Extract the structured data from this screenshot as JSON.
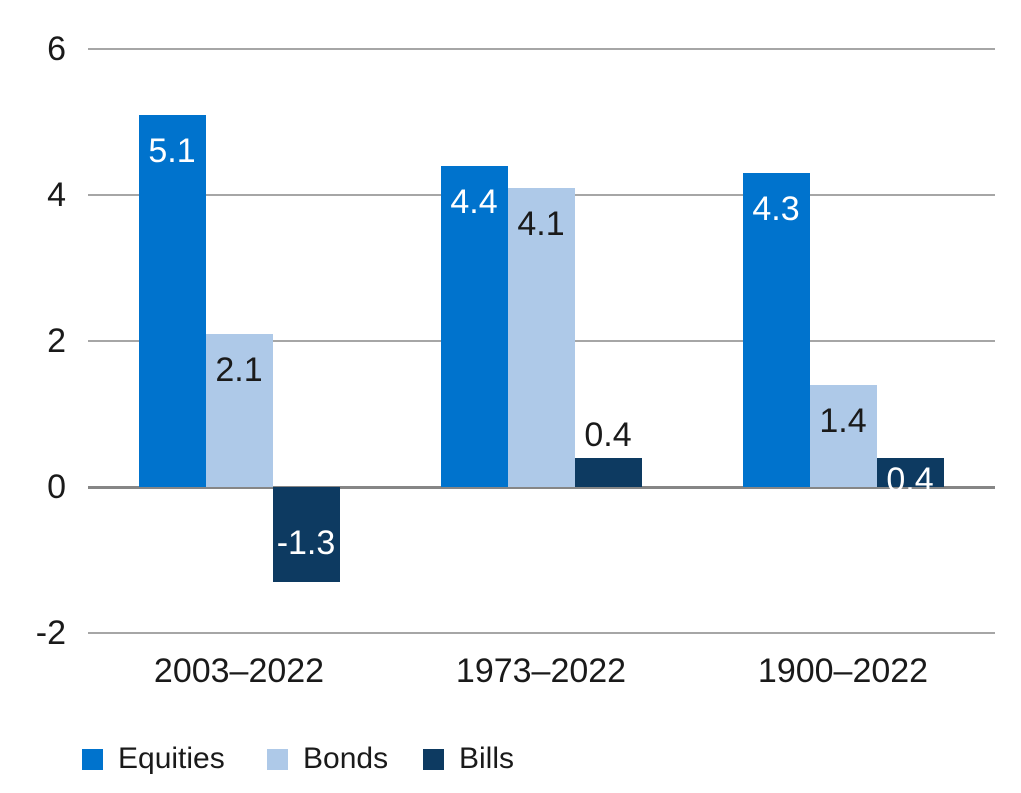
{
  "chart_data": {
    "type": "bar",
    "title": "",
    "categories": [
      "2003–2022",
      "1973–2022",
      "1900–2022"
    ],
    "series": [
      {
        "name": "Equities",
        "color": "#0073cd",
        "values": [
          5.1,
          4.4,
          4.3
        ],
        "label_colors": [
          "#ffffff",
          "#ffffff",
          "#ffffff"
        ],
        "label_placements": [
          "inside-top",
          "inside-top",
          "inside-top"
        ]
      },
      {
        "name": "Bonds",
        "color": "#aec9e8",
        "values": [
          2.1,
          4.1,
          1.4
        ],
        "label_colors": [
          "#1a1a1a",
          "#1a1a1a",
          "#1a1a1a"
        ],
        "label_placements": [
          "inside-top",
          "inside-top",
          "inside-top"
        ]
      },
      {
        "name": "Bills",
        "color": "#0d3a61",
        "values": [
          -1.3,
          0.4,
          0.4
        ],
        "label_colors": [
          "#ffffff",
          "#1a1a1a",
          "#ffffff"
        ],
        "label_placements": [
          "inside-middle",
          "above",
          "overlap-top"
        ]
      }
    ],
    "yticks": [
      6,
      4,
      2,
      0,
      -2
    ],
    "ylim": [
      -2,
      6
    ],
    "grid": true,
    "value_labels": true,
    "legend_position": "bottom",
    "xlabel": "",
    "ylabel": "",
    "colors": {
      "gridline": "#a6a6a6",
      "zero_line": "#868686",
      "text": "#1a1a1a",
      "background": "#ffffff"
    }
  }
}
